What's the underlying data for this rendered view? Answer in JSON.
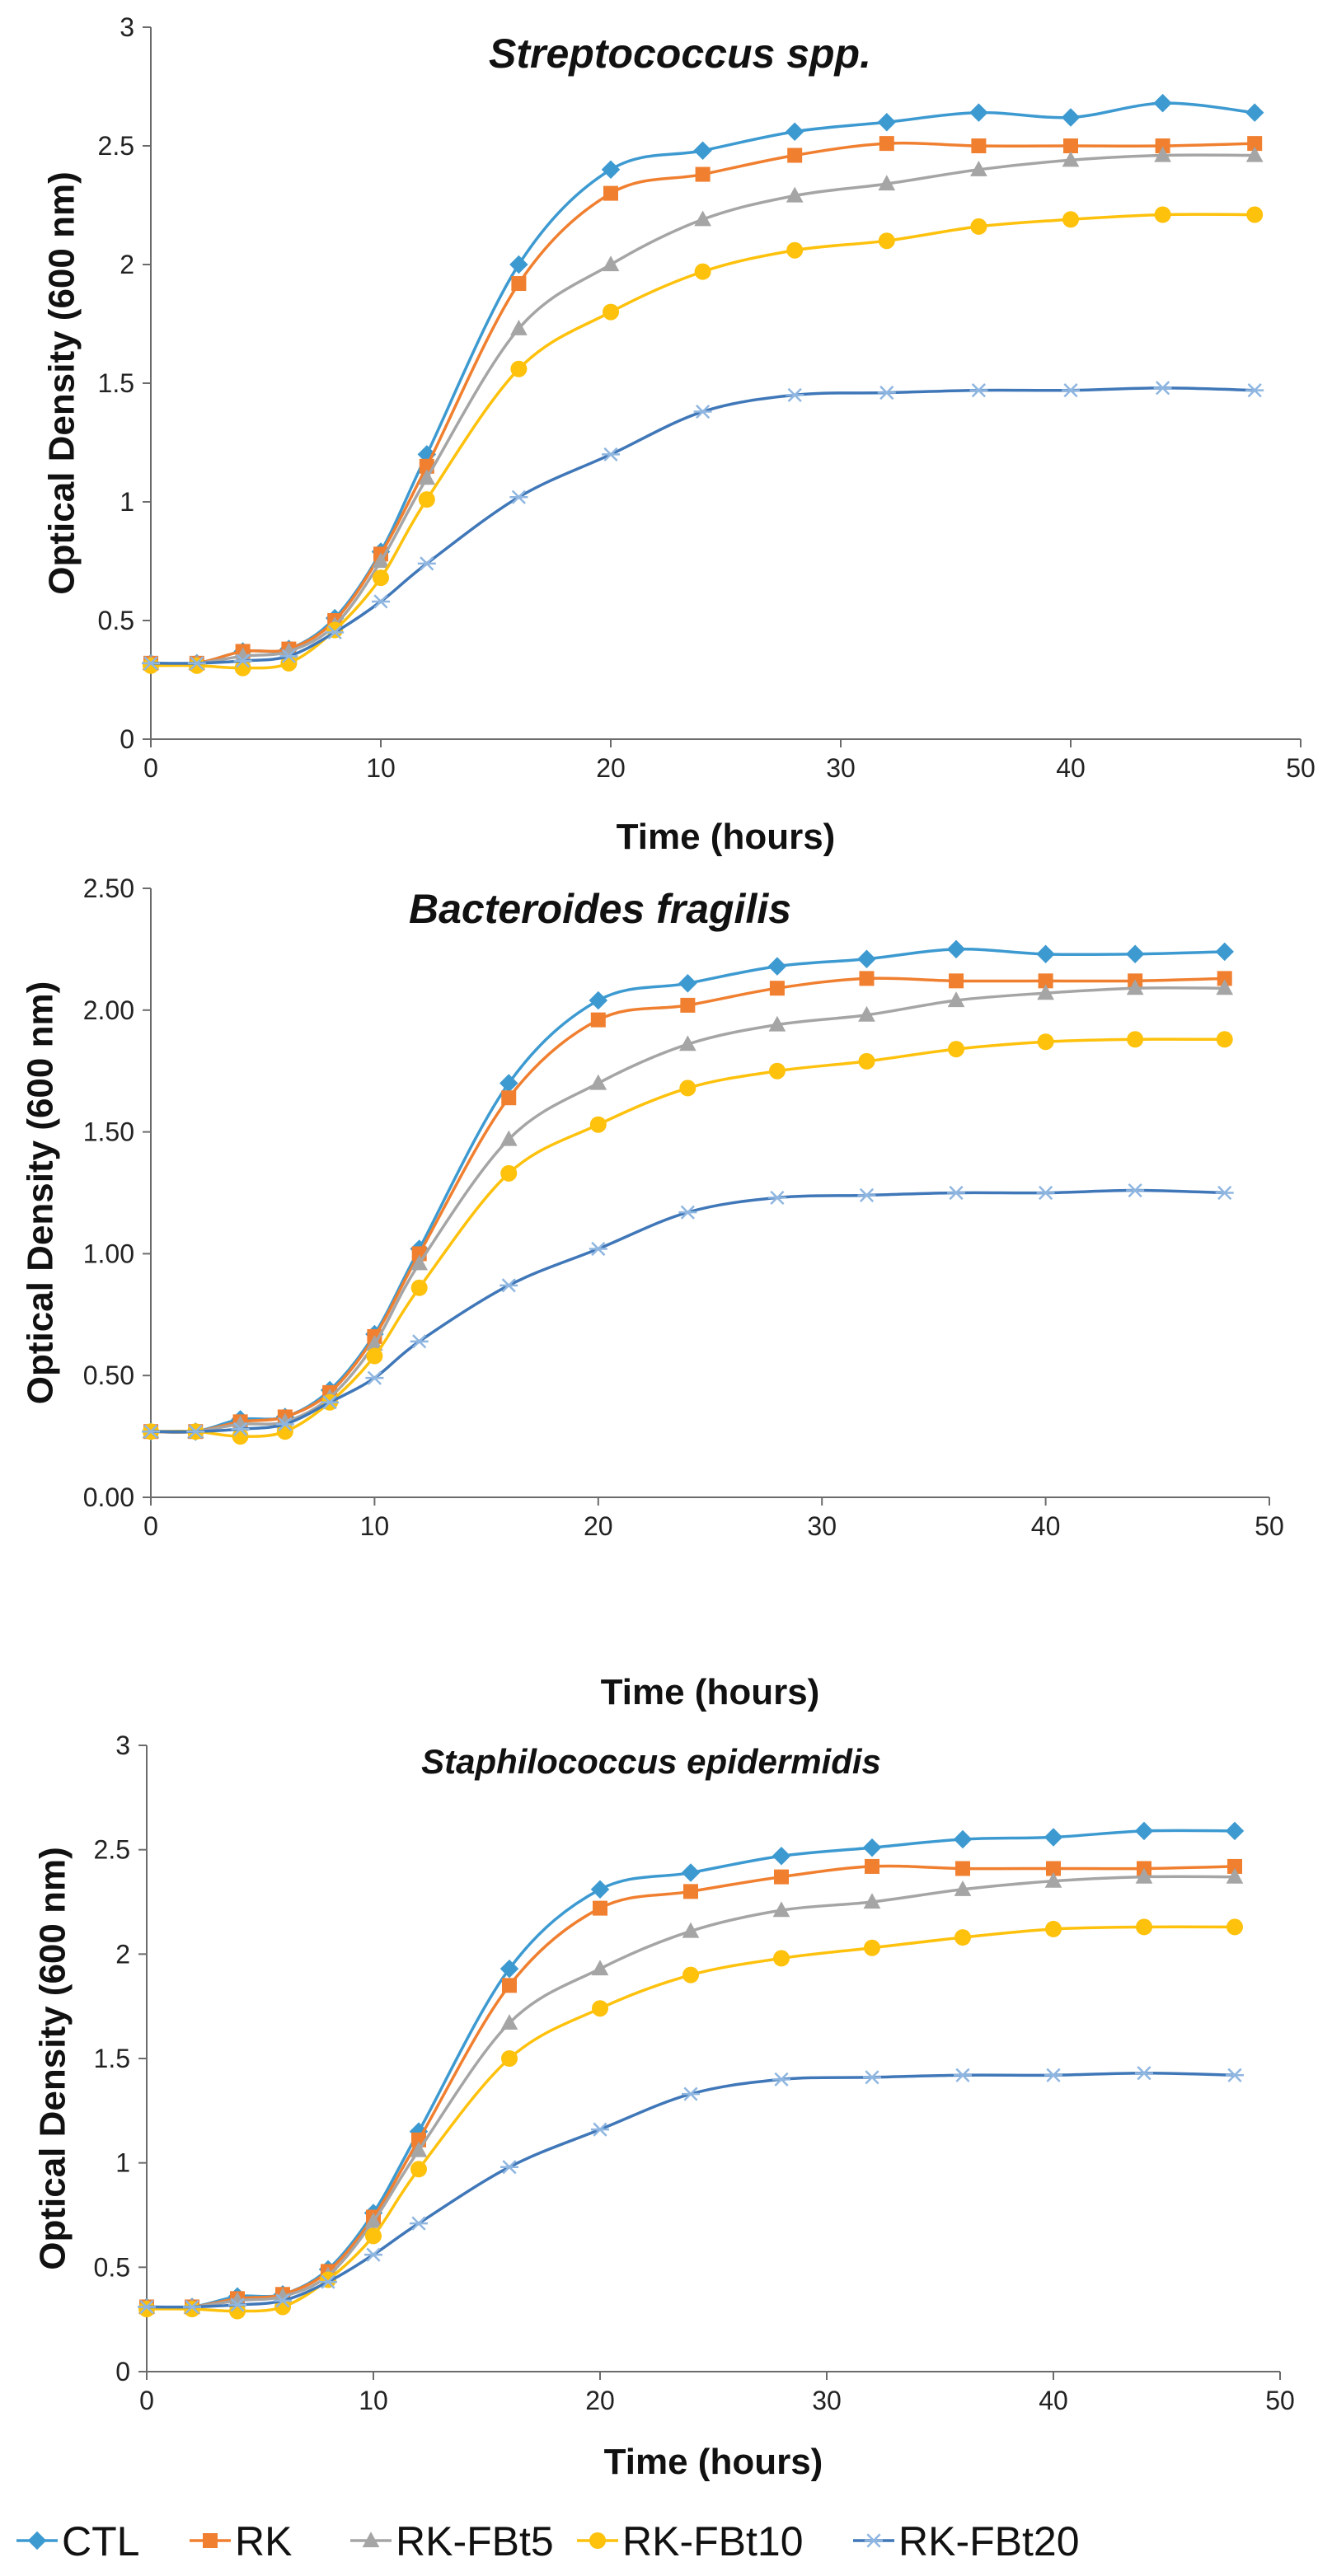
{
  "series_meta": [
    {
      "name": "CTL",
      "color": "#3d9ad1",
      "marker": "diamond"
    },
    {
      "name": "RK",
      "color": "#f07f30",
      "marker": "square"
    },
    {
      "name": "RK-FBt5",
      "color": "#a5a5a5",
      "marker": "triangle"
    },
    {
      "name": "RK-FBt10",
      "color": "#fec10c",
      "marker": "circle"
    },
    {
      "name": "RK-FBt20",
      "color": "#3f77b8",
      "marker": "star"
    }
  ],
  "chart_data": [
    {
      "type": "line",
      "title": "Streptococcus spp.",
      "xlabel": "Time (hours)",
      "ylabel": "Optical Density  (600 nm)",
      "xlim": [
        0,
        50
      ],
      "ylim": [
        0,
        3
      ],
      "xticks": [
        0,
        10,
        20,
        30,
        40,
        50
      ],
      "yticks": [
        0,
        0.5,
        1,
        1.5,
        2,
        2.5,
        3
      ],
      "ytick_labels": [
        "0",
        "0.5",
        "1",
        "1.5",
        "2",
        "2.5",
        "3"
      ],
      "x": [
        0,
        2,
        4,
        6,
        8,
        10,
        12,
        16,
        20,
        24,
        28,
        32,
        36,
        40,
        44,
        48
      ],
      "series": [
        {
          "name": "CTL",
          "values": [
            0.32,
            0.32,
            0.37,
            0.38,
            0.51,
            0.79,
            1.2,
            2.0,
            2.4,
            2.48,
            2.56,
            2.6,
            2.64,
            2.62,
            2.68,
            2.64
          ]
        },
        {
          "name": "RK",
          "values": [
            0.32,
            0.32,
            0.37,
            0.38,
            0.5,
            0.78,
            1.15,
            1.92,
            2.3,
            2.38,
            2.46,
            2.51,
            2.5,
            2.5,
            2.5,
            2.51
          ]
        },
        {
          "name": "RK-FBt5",
          "values": [
            0.32,
            0.32,
            0.35,
            0.37,
            0.48,
            0.75,
            1.1,
            1.73,
            2.0,
            2.19,
            2.29,
            2.34,
            2.4,
            2.44,
            2.46,
            2.46
          ]
        },
        {
          "name": "RK-FBt10",
          "values": [
            0.31,
            0.31,
            0.3,
            0.32,
            0.46,
            0.68,
            1.01,
            1.56,
            1.8,
            1.97,
            2.06,
            2.1,
            2.16,
            2.19,
            2.21,
            2.21
          ]
        },
        {
          "name": "RK-FBt20",
          "values": [
            0.32,
            0.32,
            0.33,
            0.35,
            0.45,
            0.58,
            0.74,
            1.02,
            1.2,
            1.38,
            1.45,
            1.46,
            1.47,
            1.47,
            1.48,
            1.47
          ]
        }
      ]
    },
    {
      "type": "line",
      "title": "Bacteroides fragilis",
      "xlabel": "Time (hours)",
      "ylabel": "Optical Density  (600 nm)",
      "xlim": [
        0,
        50
      ],
      "ylim": [
        0,
        2.5
      ],
      "xticks": [
        0,
        10,
        20,
        30,
        40,
        50
      ],
      "yticks": [
        0,
        0.5,
        1,
        1.5,
        2,
        2.5
      ],
      "ytick_labels": [
        "0.00",
        "0.50",
        "1.00",
        "1.50",
        "2.00",
        "2.50"
      ],
      "x": [
        0,
        2,
        4,
        6,
        8,
        10,
        12,
        16,
        20,
        24,
        28,
        32,
        36,
        40,
        44,
        48
      ],
      "series": [
        {
          "name": "CTL",
          "values": [
            0.27,
            0.27,
            0.32,
            0.33,
            0.44,
            0.67,
            1.02,
            1.7,
            2.04,
            2.11,
            2.18,
            2.21,
            2.25,
            2.23,
            2.23,
            2.24
          ]
        },
        {
          "name": "RK",
          "values": [
            0.27,
            0.27,
            0.31,
            0.33,
            0.43,
            0.66,
            1.0,
            1.64,
            1.96,
            2.02,
            2.09,
            2.13,
            2.12,
            2.12,
            2.12,
            2.13
          ]
        },
        {
          "name": "RK-FBt5",
          "values": [
            0.27,
            0.27,
            0.3,
            0.31,
            0.41,
            0.63,
            0.96,
            1.47,
            1.7,
            1.86,
            1.94,
            1.98,
            2.04,
            2.07,
            2.09,
            2.09
          ]
        },
        {
          "name": "RK-FBt10",
          "values": [
            0.27,
            0.27,
            0.25,
            0.27,
            0.39,
            0.58,
            0.86,
            1.33,
            1.53,
            1.68,
            1.75,
            1.79,
            1.84,
            1.87,
            1.88,
            1.88
          ]
        },
        {
          "name": "RK-FBt20",
          "values": [
            0.27,
            0.27,
            0.28,
            0.3,
            0.39,
            0.49,
            0.64,
            0.87,
            1.02,
            1.17,
            1.23,
            1.24,
            1.25,
            1.25,
            1.26,
            1.25
          ]
        }
      ]
    },
    {
      "type": "line",
      "title": "Staphilococcus  epidermidis",
      "xlabel": "Time (hours)",
      "ylabel": "Optical Density  (600 nm)",
      "xlim": [
        0,
        50
      ],
      "ylim": [
        0,
        3
      ],
      "xticks": [
        0,
        10,
        20,
        30,
        40,
        50
      ],
      "yticks": [
        0,
        0.5,
        1,
        1.5,
        2,
        2.5,
        3
      ],
      "ytick_labels": [
        "0",
        "0.5",
        "1",
        "1.5",
        "2",
        "2.5",
        "3"
      ],
      "x": [
        0,
        2,
        4,
        6,
        8,
        10,
        12,
        16,
        20,
        24,
        28,
        32,
        36,
        40,
        44,
        48
      ],
      "series": [
        {
          "name": "CTL",
          "values": [
            0.31,
            0.31,
            0.36,
            0.37,
            0.49,
            0.76,
            1.15,
            1.93,
            2.31,
            2.39,
            2.47,
            2.51,
            2.55,
            2.56,
            2.59,
            2.59
          ]
        },
        {
          "name": "RK",
          "values": [
            0.31,
            0.31,
            0.35,
            0.37,
            0.48,
            0.74,
            1.11,
            1.85,
            2.22,
            2.3,
            2.37,
            2.42,
            2.41,
            2.41,
            2.41,
            2.42
          ]
        },
        {
          "name": "RK-FBt5",
          "values": [
            0.31,
            0.31,
            0.34,
            0.36,
            0.46,
            0.72,
            1.06,
            1.67,
            1.93,
            2.11,
            2.21,
            2.25,
            2.31,
            2.35,
            2.37,
            2.37
          ]
        },
        {
          "name": "RK-FBt10",
          "values": [
            0.3,
            0.3,
            0.29,
            0.31,
            0.44,
            0.65,
            0.97,
            1.5,
            1.74,
            1.9,
            1.98,
            2.03,
            2.08,
            2.12,
            2.13,
            2.13
          ]
        },
        {
          "name": "RK-FBt20",
          "values": [
            0.31,
            0.31,
            0.32,
            0.34,
            0.43,
            0.56,
            0.71,
            0.98,
            1.16,
            1.33,
            1.4,
            1.41,
            1.42,
            1.42,
            1.43,
            1.42
          ]
        }
      ]
    }
  ]
}
